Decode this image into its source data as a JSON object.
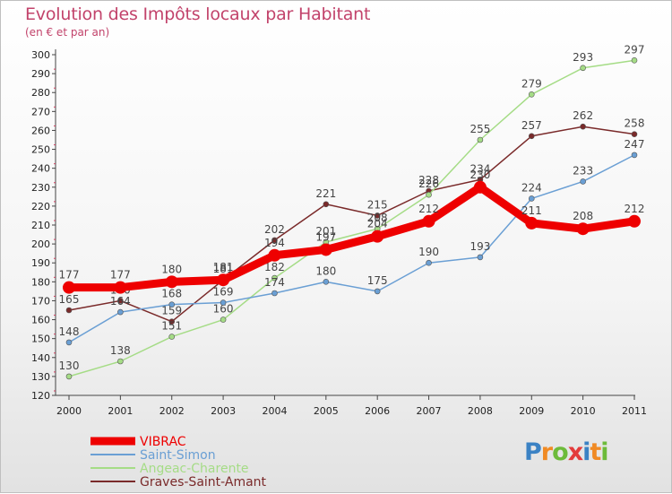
{
  "title": "Evolution des Impôts locaux par Habitant",
  "subtitle": "(en € et par an)",
  "logo": {
    "letters": [
      "P",
      "r",
      "o",
      "x",
      "i",
      "t",
      "i"
    ],
    "colors": [
      "#3b82c4",
      "#f08a24",
      "#6dbb3a",
      "#e33b3b",
      "#3b82c4",
      "#f08a24",
      "#6dbb3a"
    ]
  },
  "chart_data": {
    "type": "line",
    "x": [
      "2000",
      "2001",
      "2002",
      "2003",
      "2004",
      "2005",
      "2006",
      "2007",
      "2008",
      "2009",
      "2010",
      "2011"
    ],
    "ylim": [
      120,
      300
    ],
    "yticks": [
      120,
      130,
      140,
      150,
      160,
      170,
      180,
      190,
      200,
      210,
      220,
      230,
      240,
      250,
      260,
      270,
      280,
      290,
      300
    ],
    "grid": false,
    "legend_position": "bottom-left",
    "series": [
      {
        "name": "VIBRAC",
        "color": "#ee0000",
        "values": [
          177,
          177,
          180,
          181,
          194,
          197,
          204,
          212,
          230,
          211,
          208,
          212
        ]
      },
      {
        "name": "Saint-Simon",
        "color": "#6a9fd4",
        "values": [
          148,
          164,
          168,
          169,
          174,
          180,
          175,
          190,
          193,
          224,
          233,
          247
        ]
      },
      {
        "name": "Angeac-Charente",
        "color": "#a5dc86",
        "values": [
          130,
          138,
          151,
          160,
          182,
          201,
          208,
          226,
          255,
          279,
          293,
          297
        ]
      },
      {
        "name": "Graves-Saint-Amant",
        "color": "#7a2a2a",
        "values": [
          165,
          170,
          159,
          181,
          202,
          221,
          215,
          228,
          234,
          257,
          262,
          258
        ]
      }
    ]
  }
}
